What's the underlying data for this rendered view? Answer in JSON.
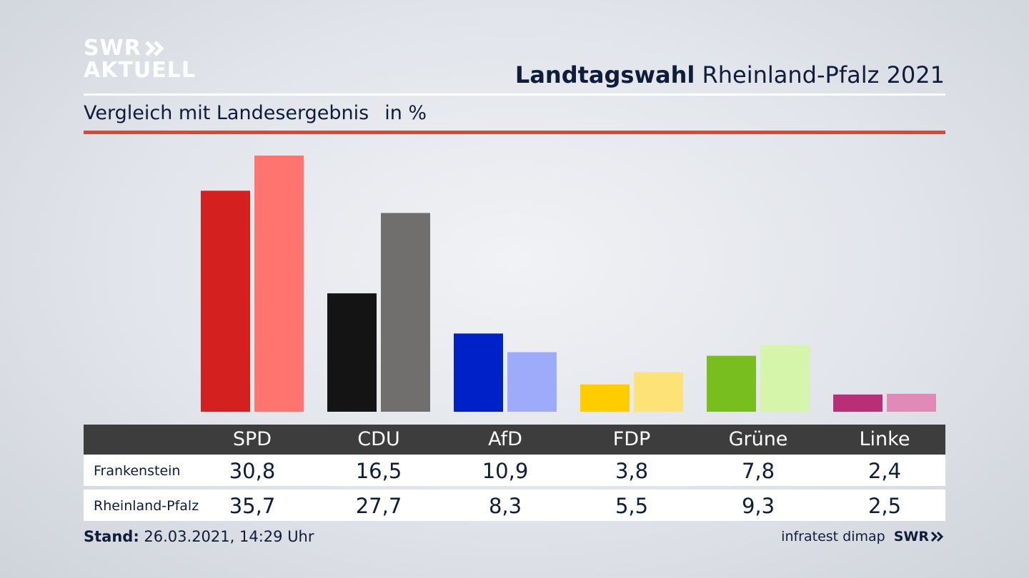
{
  "logo": {
    "line1": "SWR",
    "line2": "AKTUELL",
    "chevrons": "»"
  },
  "header": {
    "title_bold": "Landtagswahl",
    "title_rest": "Rheinland-Pfalz 2021",
    "subtitle": "Vergleich mit Landesergebnis",
    "unit": "in %"
  },
  "chart_data": {
    "type": "bar",
    "categories": [
      "SPD",
      "CDU",
      "AfD",
      "FDP",
      "Grüne",
      "Linke"
    ],
    "series": [
      {
        "name": "Frankenstein",
        "values": [
          30.8,
          16.5,
          10.9,
          3.8,
          7.8,
          2.4
        ]
      },
      {
        "name": "Rheinland-Pfalz",
        "values": [
          35.7,
          27.7,
          8.3,
          5.5,
          9.3,
          2.5
        ]
      }
    ],
    "colors": {
      "Frankenstein": [
        "#d52020",
        "#141414",
        "#0020c8",
        "#ffcc00",
        "#78be1e",
        "#b82f78"
      ],
      "Rheinland-Pfalz": [
        "#ff746e",
        "#706f6d",
        "#9eaafa",
        "#fde377",
        "#d4f5aa",
        "#e18ab8"
      ]
    },
    "ylim": [
      0,
      36
    ]
  },
  "table": {
    "rows": [
      {
        "label": "Frankenstein",
        "values": [
          "30,8",
          "16,5",
          "10,9",
          "3,8",
          "7,8",
          "2,4"
        ]
      },
      {
        "label": "Rheinland-Pfalz",
        "values": [
          "35,7",
          "27,7",
          "8,3",
          "5,5",
          "9,3",
          "2,5"
        ]
      }
    ]
  },
  "footer": {
    "stand_label": "Stand:",
    "stand_value": "26.03.2021, 14:29 Uhr",
    "source": "infratest dimap",
    "brand": "SWR",
    "brand_chevrons": "»"
  }
}
